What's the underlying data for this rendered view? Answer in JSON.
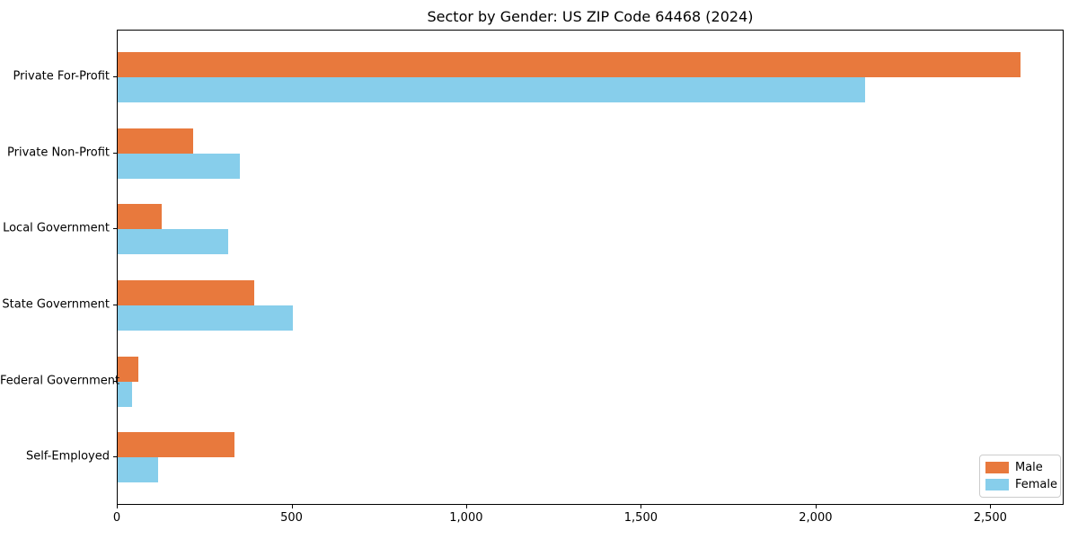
{
  "chart_data": {
    "type": "bar",
    "orientation": "horizontal",
    "title": "Sector by Gender: US ZIP Code 64468 (2024)",
    "categories": [
      "Private For-Profit",
      "Private Non-Profit",
      "Local Government",
      "State Government",
      "Federal Government",
      "Self-Employed"
    ],
    "series": [
      {
        "name": "Male",
        "color": "#e8793d",
        "values": [
          2585,
          215,
          125,
          390,
          60,
          335
        ]
      },
      {
        "name": "Female",
        "color": "#87ceeb",
        "values": [
          2140,
          350,
          315,
          500,
          40,
          115
        ]
      }
    ],
    "xlim": [
      0,
      2710
    ],
    "xticks": [
      {
        "value": 0,
        "label": "0"
      },
      {
        "value": 500,
        "label": "500"
      },
      {
        "value": 1000,
        "label": "1,000"
      },
      {
        "value": 1500,
        "label": "1,500"
      },
      {
        "value": 2000,
        "label": "2,000"
      },
      {
        "value": 2500,
        "label": "2,500"
      }
    ],
    "xlabel": "",
    "ylabel": "",
    "grid": false,
    "legend_position": "lower right",
    "colors": {
      "background": "#ffffff",
      "axis": "#000000",
      "legend_border": "#cccccc"
    }
  }
}
